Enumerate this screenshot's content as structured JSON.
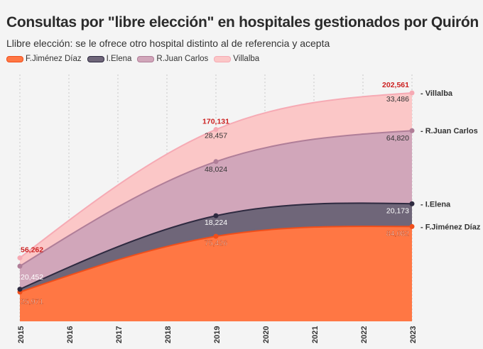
{
  "chart_data": {
    "type": "area",
    "stacked": true,
    "title": "Consultas por \"libre elección\" en hospitales gestionados por Quirón",
    "subtitle": "Llibre elección: se le ofrece otro hospital distinto al de referencia y acepta",
    "x": [
      2015,
      2019,
      2023
    ],
    "xticks": [
      "2015",
      "2016",
      "2017",
      "2018",
      "2019",
      "2020",
      "2021",
      "2022",
      "2023"
    ],
    "series": [
      {
        "name": "F.Jiménez Díaz",
        "values": [
          25971,
          75426,
          84082
        ],
        "labels": [
          "25,971",
          "75,426",
          "84,082"
        ],
        "fill": "#ff7744",
        "line": "#f04e1a"
      },
      {
        "name": "I.Elena",
        "values": [
          2500,
          18224,
          20173
        ],
        "labels": [
          null,
          "18,224",
          "20,173"
        ],
        "fill": "#6f6679",
        "line": "#2e2a40"
      },
      {
        "name": "R.Juan Carlos",
        "values": [
          20452,
          48024,
          64820
        ],
        "labels": [
          "20,452",
          "48,024",
          "64,820"
        ],
        "fill": "#d1a6ba",
        "line": "#b07e98"
      },
      {
        "name": "Villalba",
        "values": [
          7339,
          28457,
          33486
        ],
        "labels": [
          null,
          "28,457",
          "33,486"
        ],
        "fill": "#fbc7c7",
        "line": "#f6aab4"
      }
    ],
    "totals": [
      "56,262",
      "170,131",
      "202,561"
    ],
    "total_color": "#cc1f1f",
    "ylim": [
      0,
      210000
    ],
    "legend": "top-left",
    "grid": "vertical dotted"
  }
}
